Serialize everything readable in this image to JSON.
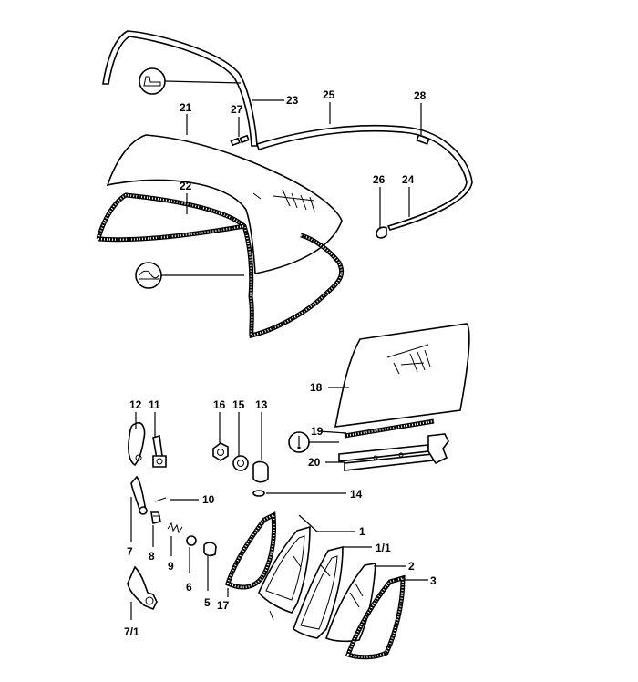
{
  "callouts": {
    "c23": "23",
    "c25": "25",
    "c28": "28",
    "c21": "21",
    "c27": "27",
    "c22": "22",
    "c26": "26",
    "c24": "24",
    "c18": "18",
    "c19": "19",
    "c20": "20",
    "c12": "12",
    "c11": "11",
    "c16": "16",
    "c15": "15",
    "c13": "13",
    "c10": "10",
    "c14": "14",
    "c1": "1",
    "c1_1": "1/1",
    "c2": "2",
    "c3": "3",
    "c7": "7",
    "c8": "8",
    "c9": "9",
    "c6": "6",
    "c5": "5",
    "c17": "17",
    "c7_1": "7/1"
  }
}
